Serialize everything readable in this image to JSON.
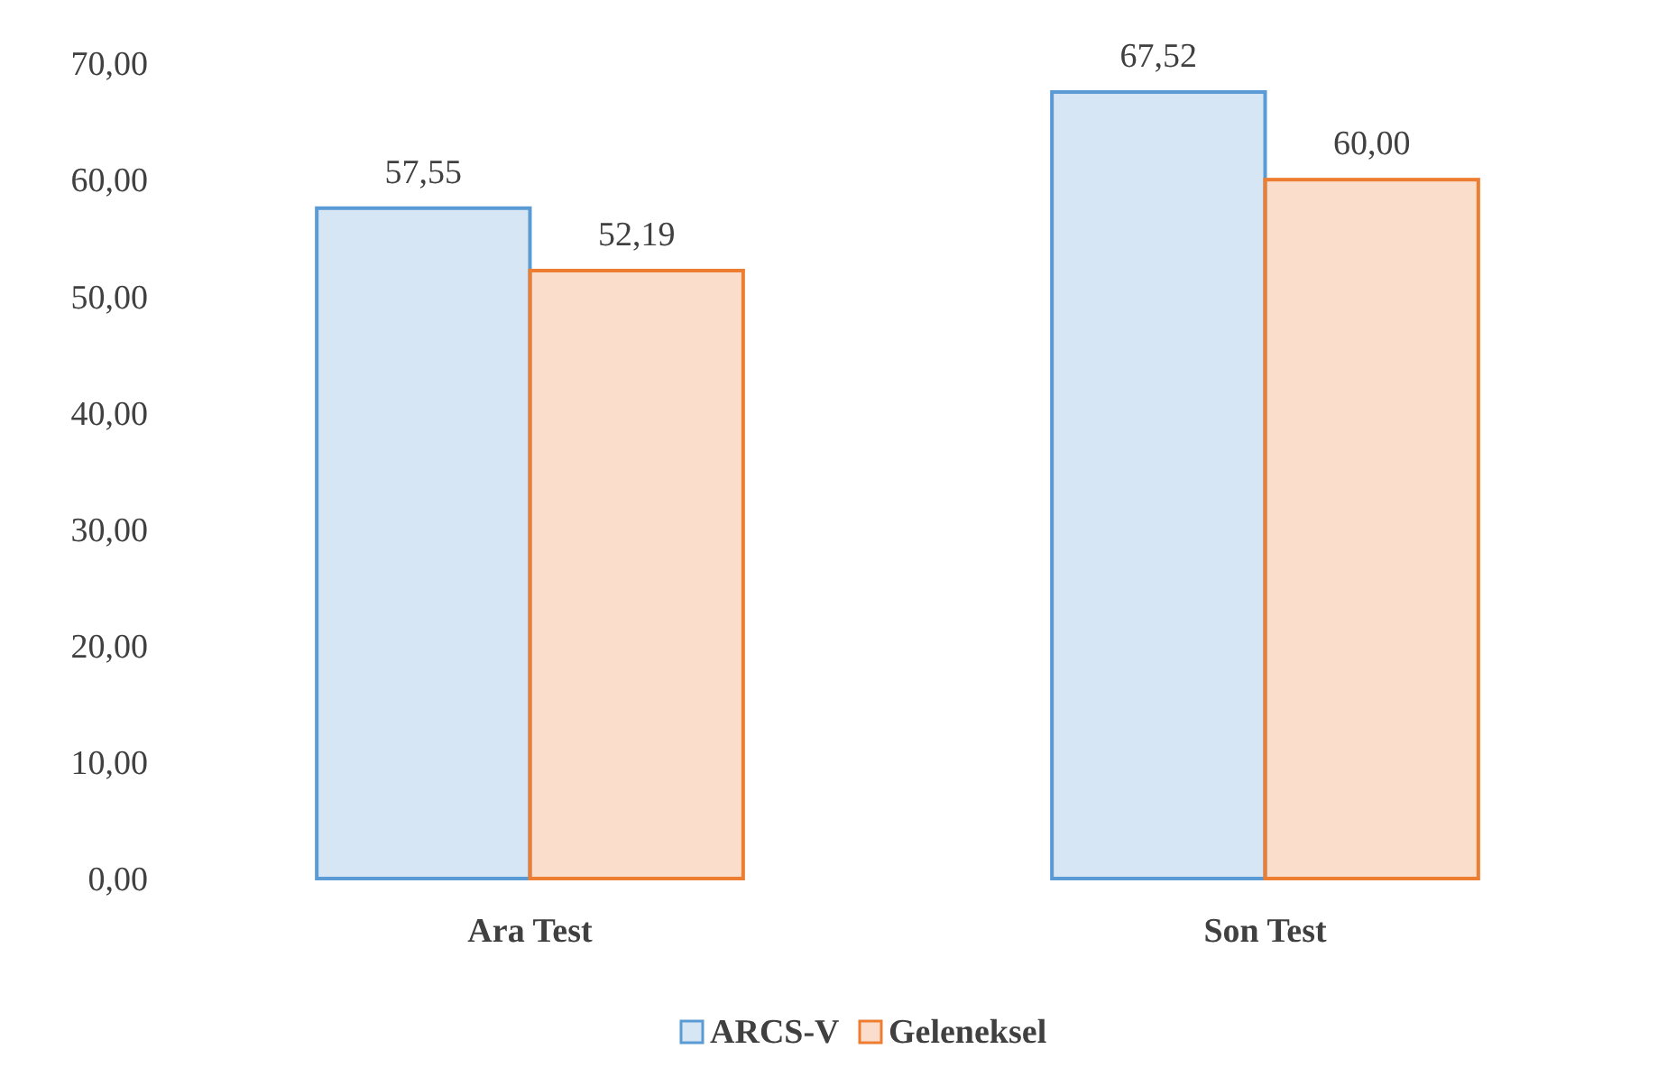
{
  "chart_data": {
    "type": "bar",
    "categories": [
      "Ara Test",
      "Son Test"
    ],
    "series": [
      {
        "name": "ARCS-V",
        "color": "#5b9bd5",
        "values": [
          57.55,
          67.52
        ],
        "value_labels": [
          "57,55",
          "67,52"
        ]
      },
      {
        "name": "Geleneksel",
        "color": "#ed7d31",
        "values": [
          52.19,
          60.0
        ],
        "value_labels": [
          "52,19",
          "60,00"
        ]
      }
    ],
    "ylim": [
      0,
      70
    ],
    "yticks": [
      {
        "value": 0,
        "label": "0,00"
      },
      {
        "value": 10,
        "label": "10,00"
      },
      {
        "value": 20,
        "label": "20,00"
      },
      {
        "value": 30,
        "label": "30,00"
      },
      {
        "value": 40,
        "label": "40,00"
      },
      {
        "value": 50,
        "label": "50,00"
      },
      {
        "value": 60,
        "label": "60,00"
      },
      {
        "value": 70,
        "label": "70,00"
      }
    ],
    "grid": false,
    "legend": "bottom"
  }
}
